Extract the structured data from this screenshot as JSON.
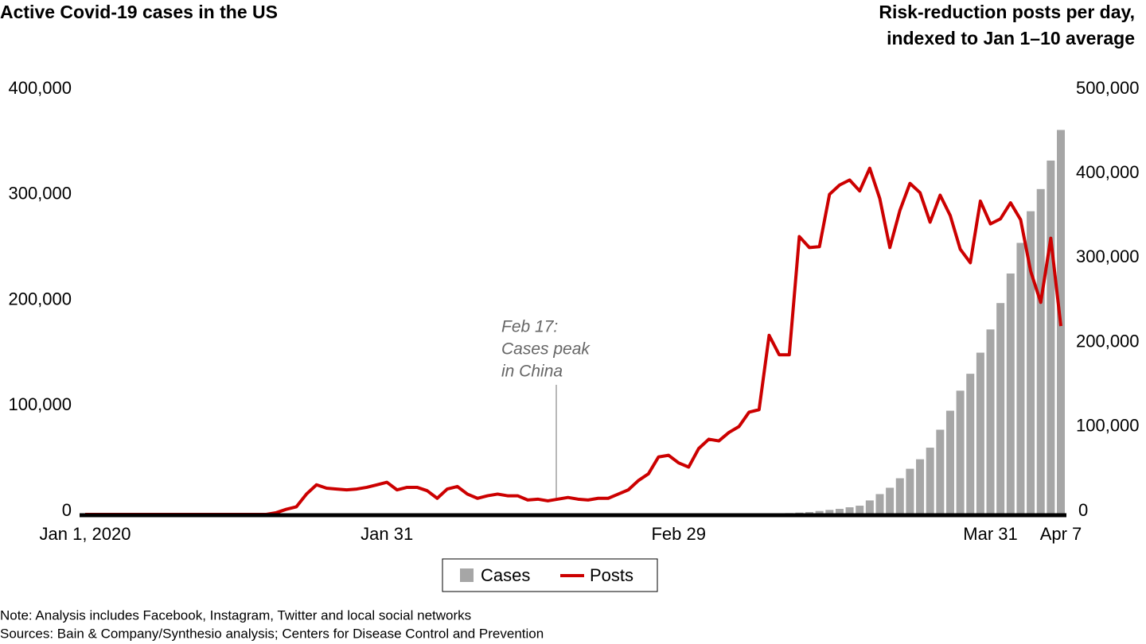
{
  "chart_data": {
    "type": "bar-line",
    "ylabel": "Active Covid-19 cases in the US",
    "y2label": [
      "Risk-reduction posts per day,",
      "indexed to Jan 1–10 average"
    ],
    "categories": [
      "Jan 1, 2020",
      null,
      null,
      null,
      null,
      null,
      null,
      null,
      null,
      null,
      null,
      null,
      null,
      null,
      null,
      null,
      null,
      null,
      null,
      null,
      null,
      null,
      null,
      null,
      null,
      null,
      null,
      null,
      null,
      null,
      "Jan 31",
      null,
      null,
      null,
      null,
      null,
      null,
      null,
      null,
      null,
      null,
      null,
      null,
      null,
      null,
      null,
      null,
      null,
      null,
      null,
      null,
      null,
      null,
      null,
      null,
      null,
      null,
      null,
      null,
      "Feb 29",
      null,
      null,
      null,
      null,
      null,
      null,
      null,
      null,
      null,
      null,
      null,
      null,
      null,
      null,
      null,
      null,
      null,
      null,
      null,
      null,
      null,
      null,
      null,
      null,
      null,
      null,
      null,
      null,
      null,
      null,
      "Mar 31",
      null,
      null,
      null,
      null,
      null,
      null,
      "Apr 7"
    ],
    "series": [
      {
        "name": "Cases",
        "color": "#a6a6a6",
        "axis": "y",
        "values": [
          0,
          0,
          0,
          0,
          0,
          0,
          0,
          0,
          0,
          0,
          0,
          0,
          0,
          0,
          0,
          0,
          0,
          0,
          0,
          0,
          1,
          1,
          2,
          2,
          5,
          5,
          5,
          5,
          5,
          6,
          6,
          7,
          8,
          11,
          11,
          11,
          11,
          11,
          11,
          11,
          12,
          12,
          12,
          12,
          13,
          13,
          13,
          13,
          13,
          13,
          13,
          13,
          13,
          14,
          14,
          53,
          53,
          57,
          60,
          62,
          68,
          90,
          100,
          150,
          300,
          400,
          600,
          900,
          1200,
          1500,
          2000,
          2500,
          3000,
          4000,
          5000,
          6000,
          7500,
          9000,
          14000,
          20000,
          26000,
          35000,
          44000,
          53000,
          64000,
          81000,
          99000,
          118000,
          134000,
          154000,
          176000,
          201000,
          229000,
          258000,
          288000,
          309000,
          336000,
          365000
        ]
      },
      {
        "name": "Posts",
        "color": "#cc0000",
        "axis": "y2",
        "values": [
          1000,
          1000,
          1000,
          1000,
          1000,
          1000,
          1000,
          1000,
          1000,
          1000,
          1000,
          1000,
          1000,
          1000,
          1000,
          1000,
          1000,
          1000,
          1000,
          3000,
          7000,
          10000,
          25000,
          36000,
          32000,
          31000,
          30000,
          31000,
          33000,
          36000,
          39000,
          30000,
          33000,
          33000,
          29000,
          20000,
          31000,
          34000,
          25000,
          20000,
          23000,
          25000,
          23000,
          23000,
          18000,
          19000,
          17000,
          19000,
          21000,
          19000,
          18000,
          20000,
          20000,
          25000,
          30000,
          41000,
          49000,
          69000,
          71000,
          62000,
          57000,
          79000,
          90000,
          88000,
          98000,
          105000,
          122000,
          125000,
          213000,
          190000,
          190000,
          330000,
          317000,
          318000,
          380000,
          391000,
          397000,
          384000,
          411000,
          375000,
          317000,
          361000,
          393000,
          382000,
          347000,
          379000,
          355000,
          315000,
          299000,
          372000,
          345000,
          351000,
          370000,
          350000,
          289000,
          252000,
          328000,
          224000
        ]
      }
    ],
    "ylim": [
      0,
      400000
    ],
    "yticks": [
      0,
      {
        "value": 100000,
        "label": "100,000"
      },
      {
        "value": 200000,
        "label": "200,000"
      },
      {
        "value": 300000,
        "label": "300,000"
      },
      {
        "value": 400000,
        "label": "400,000"
      }
    ],
    "y2lim": [
      0,
      500000
    ],
    "y2ticks": [
      0,
      {
        "value": 100000,
        "label": "100,000"
      },
      {
        "value": 200000,
        "label": "200,000"
      },
      {
        "value": 300000,
        "label": "300,000"
      },
      {
        "value": 400000,
        "label": "400,000"
      },
      {
        "value": 500000,
        "label": "500,000"
      }
    ],
    "annotation": [
      "Feb 17:",
      "Cases peak",
      "in China"
    ],
    "notes": [
      "Note: Analysis includes Facebook, Instagram, Twitter and local social networks",
      "Sources: Bain & Company/Synthesio analysis; Centers for Disease Control and Prevention"
    ]
  }
}
